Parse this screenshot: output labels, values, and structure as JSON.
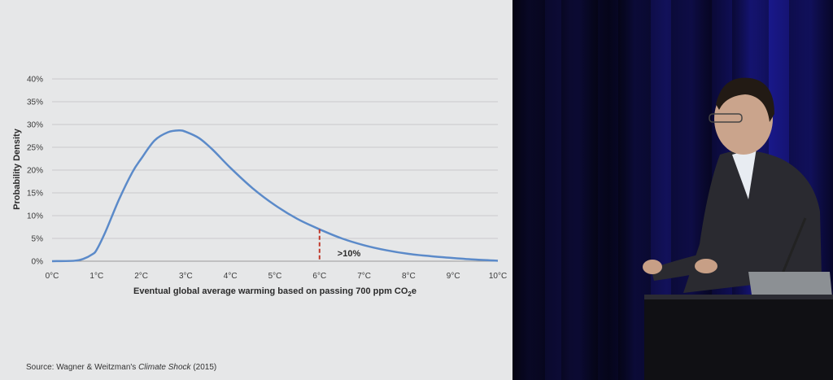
{
  "chart_data": {
    "type": "line",
    "title": "",
    "xlabel_main": "Eventual global average warming based on passing 700 ppm CO",
    "xlabel_sub": "2",
    "xlabel_tail": "e",
    "ylabel": "Probability Density",
    "x_ticks": [
      "0°C",
      "1°C",
      "2°C",
      "3°C",
      "4°C",
      "5°C",
      "6°C",
      "7°C",
      "8°C",
      "9°C",
      "10°C"
    ],
    "y_ticks": [
      "0%",
      "5%",
      "10%",
      "15%",
      "20%",
      "25%",
      "30%",
      "35%",
      "40%"
    ],
    "xlim": [
      0,
      10
    ],
    "ylim": [
      0,
      40
    ],
    "grid": true,
    "series": [
      {
        "color": "#5b8ac9",
        "x": [
          0,
          0.5,
          0.7,
          0.9,
          1.0,
          1.2,
          1.5,
          1.8,
          2.0,
          2.3,
          2.6,
          2.85,
          3.0,
          3.3,
          3.6,
          4.0,
          4.5,
          5.0,
          5.5,
          6.0,
          6.5,
          7.0,
          7.5,
          8.0,
          8.5,
          9.0,
          9.5,
          10.0
        ],
        "y": [
          0,
          0.1,
          0.5,
          1.5,
          2.5,
          6.5,
          13.5,
          19.5,
          22.5,
          26.5,
          28.3,
          28.7,
          28.4,
          27.0,
          24.5,
          20.5,
          16.0,
          12.3,
          9.3,
          7.0,
          5.0,
          3.5,
          2.4,
          1.6,
          1.1,
          0.7,
          0.35,
          0.1
        ]
      }
    ],
    "threshold": {
      "x": 6,
      "y": 7,
      "color": "#c0392b",
      "label": ">10%"
    }
  },
  "source": {
    "prefix": "Source: Wagner & Weitzman's ",
    "book": "Climate Shock",
    "suffix": " (2015)"
  }
}
